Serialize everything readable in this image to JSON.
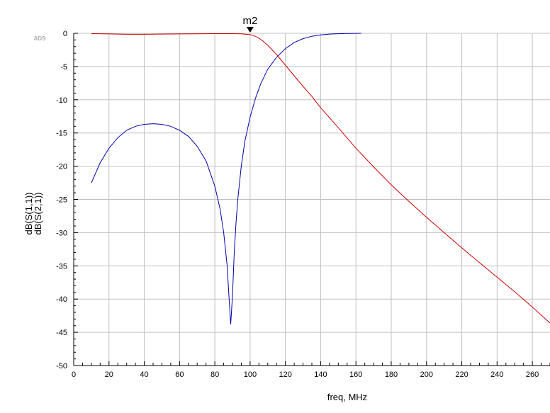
{
  "chart_data": {
    "type": "line",
    "title": "",
    "xlabel": "freq, MHz",
    "xlim": [
      0,
      270
    ],
    "ylim": [
      -50,
      0
    ],
    "x_ticks": [
      0,
      20,
      40,
      60,
      80,
      100,
      120,
      140,
      160,
      180,
      200,
      220,
      240,
      260
    ],
    "y_ticks": [
      0,
      -5,
      -10,
      -15,
      -20,
      -25,
      -30,
      -35,
      -40,
      -45,
      -50
    ],
    "grid": true,
    "corner_tag": "ADS",
    "ylabels": [
      {
        "text": "dB(S(1,1))",
        "color": "#0000cc"
      },
      {
        "text": "dB(S(2,1))",
        "color": "#cc0000"
      }
    ],
    "series": [
      {
        "name": "dB(S(1,1))",
        "color": "#0000aa",
        "x": [
          10,
          15,
          20,
          25,
          30,
          35,
          40,
          45,
          50,
          55,
          60,
          65,
          70,
          75,
          80,
          83,
          85,
          87,
          88,
          89,
          90,
          91,
          92,
          93,
          95,
          97,
          100,
          103,
          106,
          110,
          115,
          120,
          125,
          130,
          135,
          140,
          145,
          150,
          155,
          160,
          163
        ],
        "y": [
          -22.5,
          -19.5,
          -17.3,
          -15.7,
          -14.6,
          -14.0,
          -13.7,
          -13.6,
          -13.7,
          -14.0,
          -14.6,
          -15.5,
          -17.0,
          -19.2,
          -23.0,
          -26.5,
          -30.0,
          -35.0,
          -39.5,
          -43.8,
          -39.5,
          -33.0,
          -28.5,
          -25.0,
          -20.0,
          -16.3,
          -12.6,
          -9.8,
          -7.6,
          -5.4,
          -3.6,
          -2.3,
          -1.4,
          -0.8,
          -0.45,
          -0.25,
          -0.12,
          -0.06,
          -0.03,
          -0.01,
          0.0
        ]
      },
      {
        "name": "dB(S(2,1))",
        "color": "#cc0000",
        "x": [
          10,
          20,
          30,
          40,
          50,
          60,
          70,
          80,
          90,
          95,
          100,
          103,
          106,
          110,
          115,
          120,
          125,
          130,
          135,
          140,
          150,
          160,
          170,
          180,
          190,
          200,
          210,
          220,
          230,
          240,
          250,
          260,
          270
        ],
        "y": [
          -0.05,
          -0.1,
          -0.15,
          -0.15,
          -0.12,
          -0.1,
          -0.08,
          -0.05,
          -0.05,
          -0.08,
          -0.2,
          -0.45,
          -0.9,
          -1.8,
          -3.2,
          -4.8,
          -6.4,
          -8.0,
          -9.5,
          -11.2,
          -14.2,
          -17.3,
          -20.1,
          -22.8,
          -25.3,
          -27.7,
          -30.0,
          -32.3,
          -34.5,
          -36.7,
          -38.9,
          -41.2,
          -43.6
        ]
      }
    ],
    "markers": [
      {
        "label": "m2",
        "x": 100,
        "y": 0
      }
    ]
  }
}
